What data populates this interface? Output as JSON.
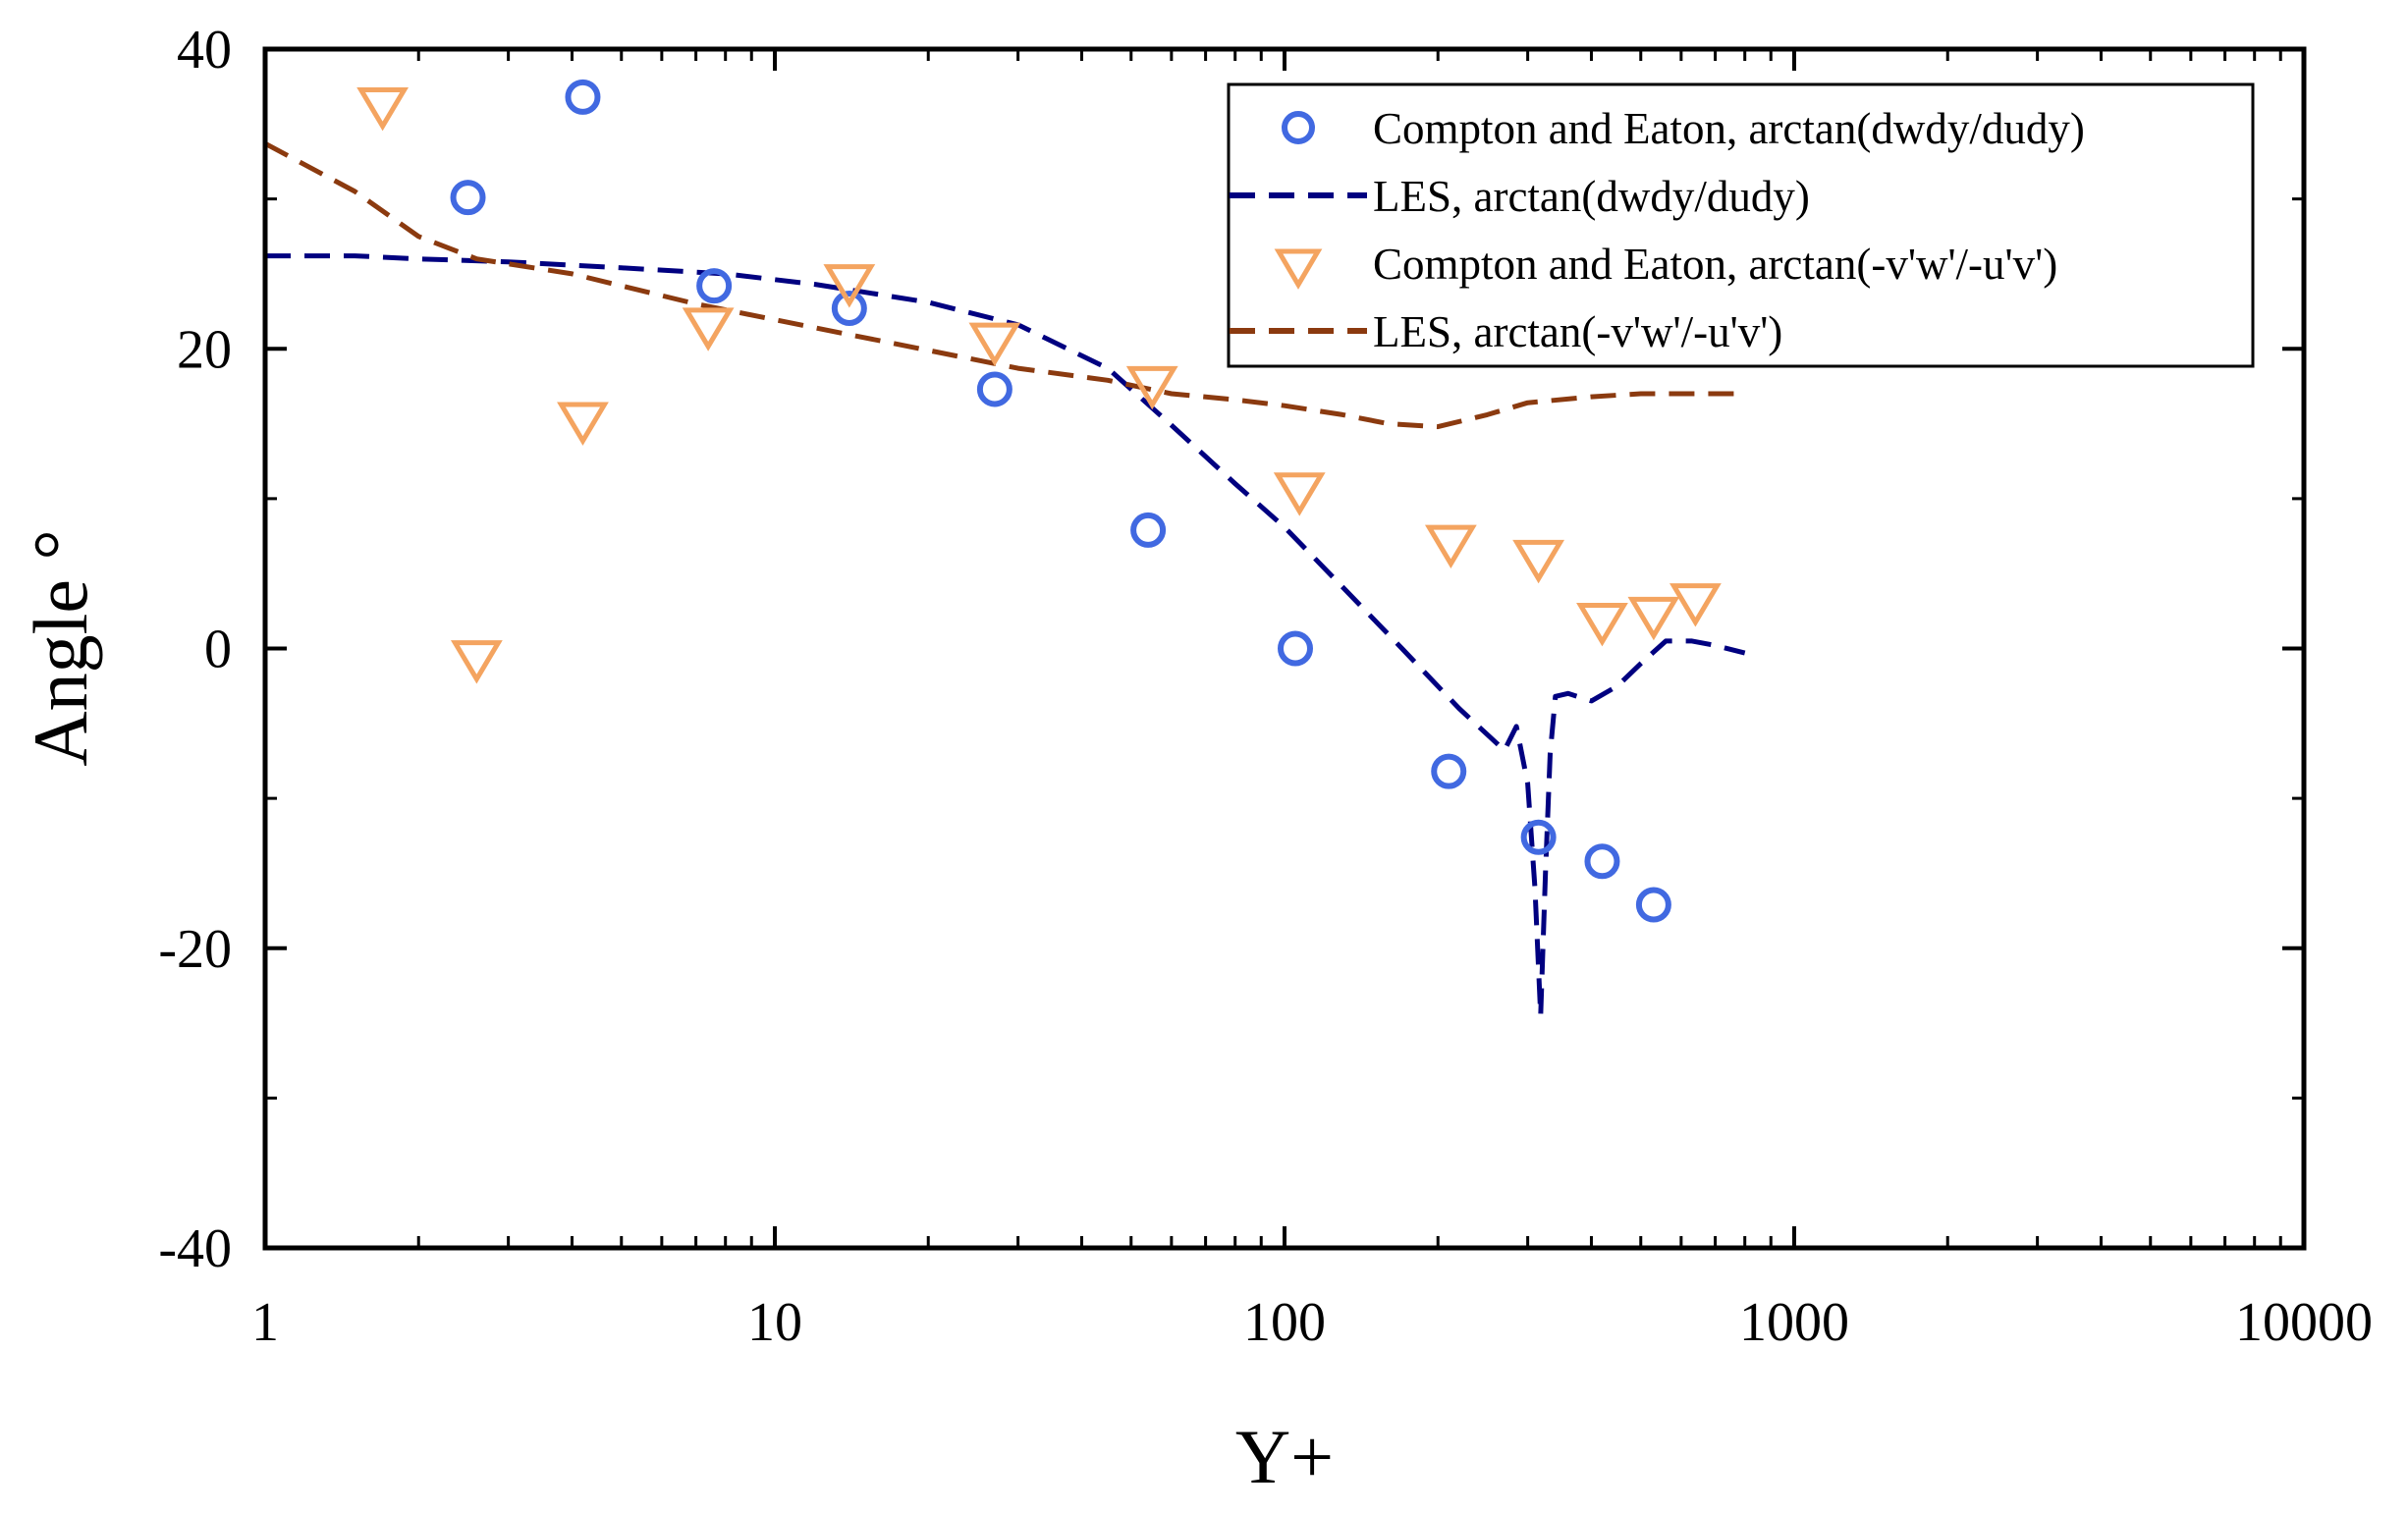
{
  "chart_data": {
    "type": "scatter",
    "title": "",
    "xlabel": "Y+",
    "ylabel": "Angle °",
    "xscale": "log",
    "xlim": [
      1,
      10000
    ],
    "ylim": [
      -40,
      40
    ],
    "xticks": [
      1,
      10,
      100,
      1000,
      10000
    ],
    "xtick_labels": [
      "1",
      "10",
      "100",
      "1000",
      "10000"
    ],
    "yticks": [
      -40,
      -20,
      0,
      20,
      40
    ],
    "ytick_labels": [
      "-40",
      "-20",
      "0",
      "20",
      "40"
    ],
    "grid": false,
    "legend_position": "top-right",
    "series": [
      {
        "name": "Compton and Eaton, arctan(dwdy/dudy)",
        "kind": "marker",
        "marker": "circle",
        "color": "#4169E1",
        "x": [
          2.5,
          4.2,
          7.6,
          14,
          27,
          54,
          105,
          210,
          315,
          420,
          530
        ],
        "y": [
          30.1,
          36.8,
          24.2,
          22.7,
          17.3,
          7.9,
          0.0,
          -8.2,
          -12.6,
          -14.2,
          -17.1
        ]
      },
      {
        "name": "LES, arctan(dwdy/dudy)",
        "kind": "line",
        "dash": "dashed",
        "color": "#000080",
        "x": [
          1,
          1.5,
          2,
          3,
          5,
          8,
          12,
          20,
          30,
          45,
          60,
          80,
          100,
          130,
          170,
          220,
          270,
          285,
          300,
          310,
          318,
          325,
          332,
          340,
          360,
          400,
          450,
          500,
          560,
          630,
          700,
          800
        ],
        "y": [
          26.2,
          26.2,
          26.0,
          25.8,
          25.4,
          25.0,
          24.3,
          23.1,
          21.6,
          18.7,
          14.9,
          11.0,
          8.1,
          4.1,
          0.0,
          -4.0,
          -6.8,
          -5.2,
          -9.0,
          -16.0,
          -24.5,
          -15.0,
          -7.0,
          -3.2,
          -3.0,
          -3.5,
          -2.5,
          -1.0,
          0.5,
          0.5,
          0.2,
          -0.3
        ]
      },
      {
        "name": "Compton and Eaton, arctan(-v'w'/-u'v')",
        "kind": "marker",
        "marker": "triangle-down",
        "color": "#F4A460",
        "x": [
          1.7,
          2.6,
          4.2,
          7.4,
          14,
          27,
          55,
          107,
          212,
          315,
          420,
          530,
          640
        ],
        "y": [
          36.3,
          -0.6,
          15.3,
          21.6,
          24.5,
          20.6,
          17.7,
          10.6,
          7.1,
          6.1,
          1.9,
          2.3,
          3.2
        ]
      },
      {
        "name": "LES, arctan(-v'w'/-u'v')",
        "kind": "line",
        "dash": "dashed",
        "color": "#8B3A0F",
        "x": [
          1,
          1.5,
          2,
          2.6,
          4,
          7,
          12,
          20,
          30,
          45,
          60,
          80,
          100,
          130,
          160,
          200,
          250,
          300,
          400,
          500,
          600,
          800
        ],
        "y": [
          33.7,
          30.5,
          27.5,
          26.0,
          25.0,
          23.0,
          21.4,
          19.9,
          18.7,
          17.9,
          17.0,
          16.6,
          16.2,
          15.6,
          15.0,
          14.8,
          15.6,
          16.4,
          16.8,
          17.0,
          17.0,
          17.0
        ]
      }
    ]
  }
}
